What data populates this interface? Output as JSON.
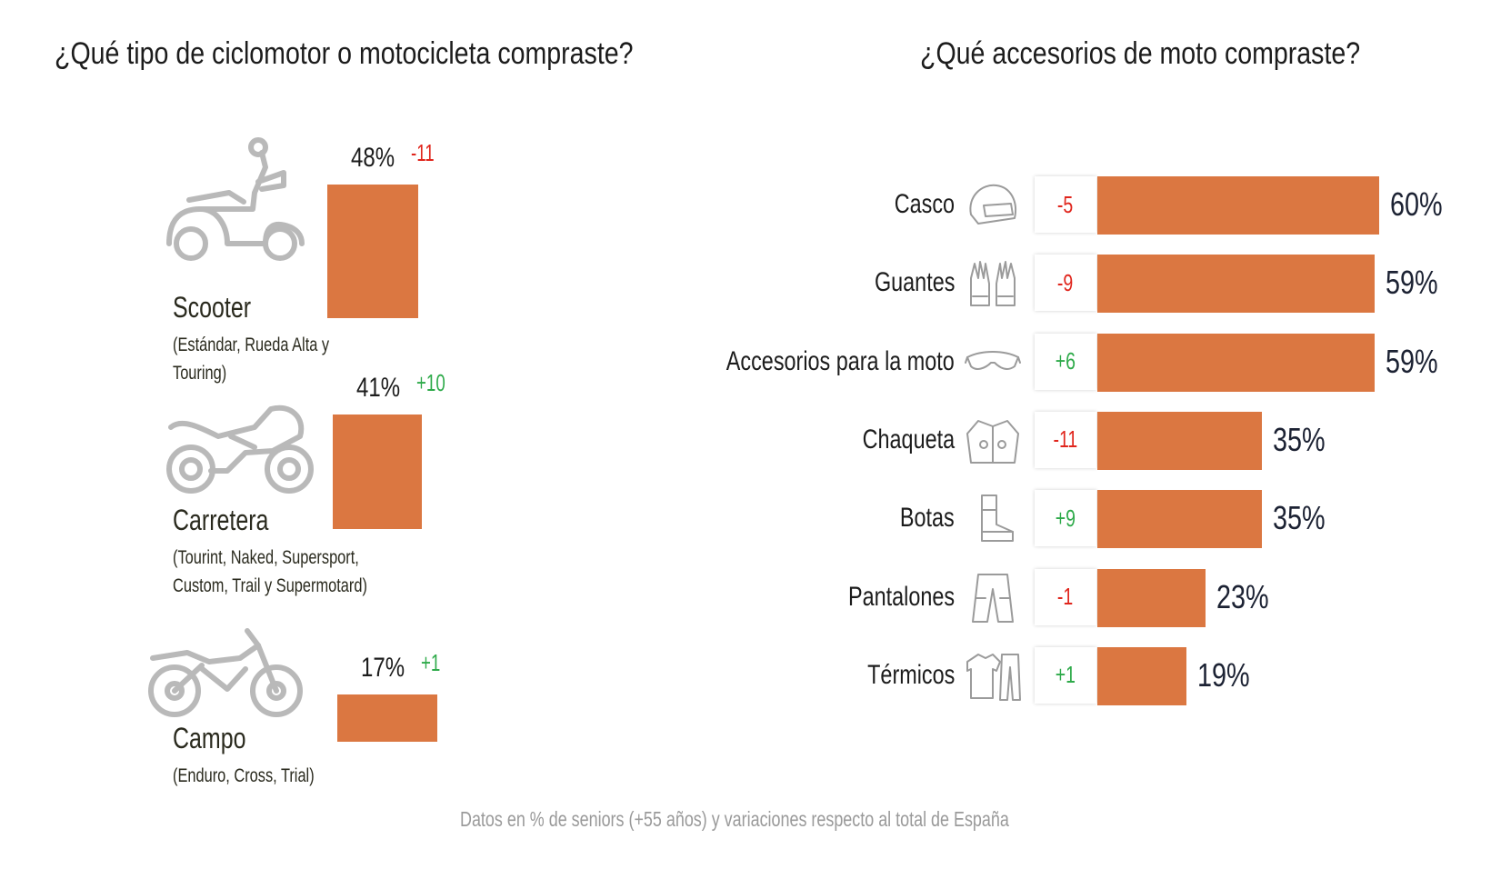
{
  "chart_data": [
    {
      "type": "bar",
      "orientation": "vertical",
      "title": "¿Qué tipo de ciclomotor o motocicleta compraste?",
      "categories": [
        {
          "name": "Scooter",
          "subtitle": "(Estándar, Rueda Alta y Touring)",
          "value": 48,
          "value_label": "48%",
          "delta": "-11",
          "delta_sign": "negative",
          "icon": "scooter-icon"
        },
        {
          "name": "Carretera",
          "subtitle": "(Tourint, Naked, Supersport, Custom, Trail y Supermotard)",
          "value": 41,
          "value_label": "41%",
          "delta": "+10",
          "delta_sign": "positive",
          "icon": "sport-motorcycle-icon"
        },
        {
          "name": "Campo",
          "subtitle": "(Enduro, Cross, Trial)",
          "value": 17,
          "value_label": "17%",
          "delta": "+1",
          "delta_sign": "positive",
          "icon": "dirt-bike-icon"
        }
      ],
      "unit": "%",
      "bar_color": "#db7741"
    },
    {
      "type": "bar",
      "orientation": "horizontal",
      "title": "¿Qué accesorios de moto compraste?",
      "categories": [
        "Casco",
        "Guantes",
        "Accesorios para la moto",
        "Chaqueta",
        "Botas",
        "Pantalones",
        "Térmicos"
      ],
      "values": [
        60,
        59,
        59,
        35,
        35,
        23,
        19
      ],
      "value_labels": [
        "60%",
        "59%",
        "59%",
        "35%",
        "35%",
        "23%",
        "19%"
      ],
      "deltas": [
        "-5",
        "-9",
        "+6",
        "-11",
        "+9",
        "-1",
        "+1"
      ],
      "icons": [
        "helmet-icon",
        "gloves-icon",
        "goggles-icon",
        "jacket-icon",
        "boot-icon",
        "pants-icon",
        "thermal-wear-icon"
      ],
      "unit": "%",
      "bar_color": "#db7741"
    }
  ],
  "footnote": "Datos en % de seniors (+55 años) y variaciones respecto al total de España",
  "colors": {
    "bar": "#db7741",
    "negative": "#e0251c",
    "positive": "#2eaa4a",
    "icon": "#b9b9b9"
  }
}
